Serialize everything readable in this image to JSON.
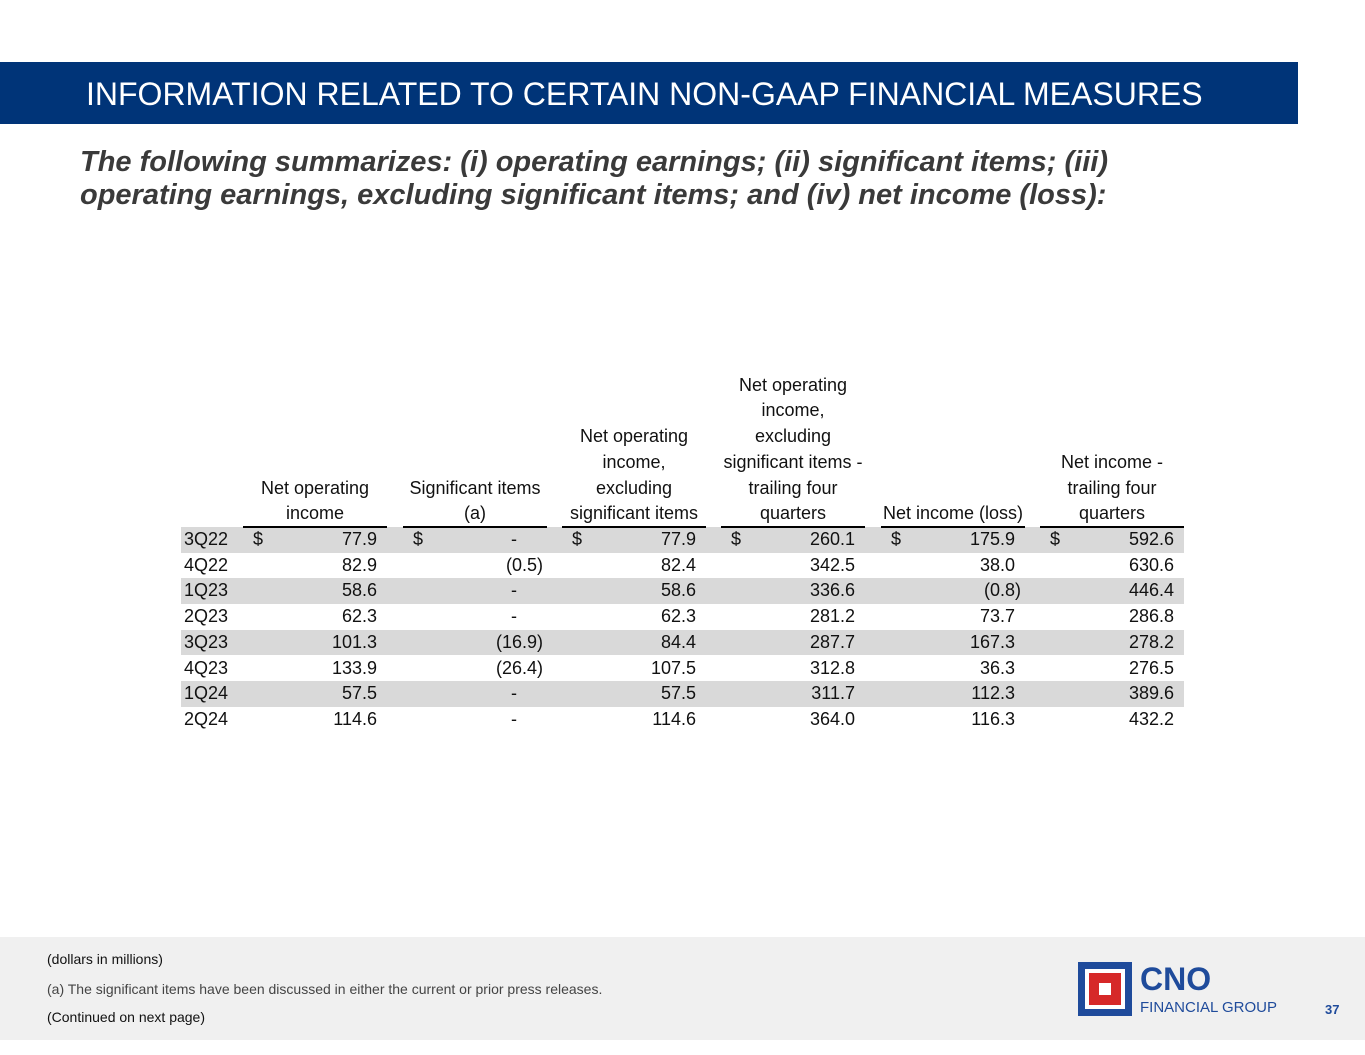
{
  "header": {
    "title": "INFORMATION RELATED TO CERTAIN NON-GAAP FINANCIAL MEASURES"
  },
  "subtitle": "The following summarizes: (i) operating earnings; (ii) significant items; (iii) operating earnings, excluding significant items; and (iv) net income (loss):",
  "table": {
    "currency_symbol": "$",
    "columns": [
      "Net operating income",
      "Significant items (a)",
      "Net operating income, excluding significant items",
      "Net operating income, excluding significant items - trailing four quarters",
      "Net income (loss)",
      "Net income - trailing four quarters"
    ],
    "rows": [
      [
        "3Q22",
        "77.9",
        "-",
        "77.9",
        "260.1",
        "175.9",
        "592.6"
      ],
      [
        "4Q22",
        "82.9",
        "(0.5)",
        "82.4",
        "342.5",
        "38.0",
        "630.6"
      ],
      [
        "1Q23",
        "58.6",
        "-",
        "58.6",
        "336.6",
        "(0.8)",
        "446.4"
      ],
      [
        "2Q23",
        "62.3",
        "-",
        "62.3",
        "281.2",
        "73.7",
        "286.8"
      ],
      [
        "3Q23",
        "101.3",
        "(16.9)",
        "84.4",
        "287.7",
        "167.3",
        "278.2"
      ],
      [
        "4Q23",
        "133.9",
        "(26.4)",
        "107.5",
        "312.8",
        "36.3",
        "276.5"
      ],
      [
        "1Q24",
        "57.5",
        "-",
        "57.5",
        "311.7",
        "112.3",
        "389.6"
      ],
      [
        "2Q24",
        "114.6",
        "-",
        "114.6",
        "364.0",
        "116.3",
        "432.2"
      ]
    ]
  },
  "footer": {
    "notes": [
      "(dollars in millions)",
      "(a) The significant items have been discussed in either the current or prior press releases.",
      "(Continued on next page)"
    ],
    "logo": {
      "name": "CNO",
      "tagline": "FINANCIAL GROUP"
    },
    "page_number": "37"
  }
}
